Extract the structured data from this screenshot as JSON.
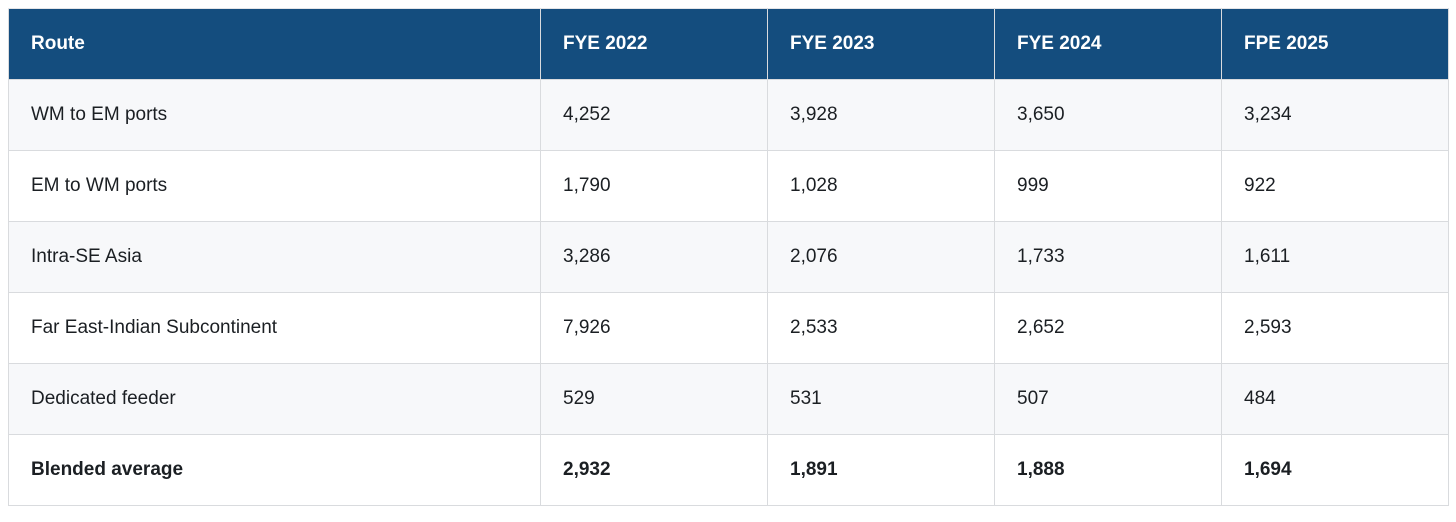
{
  "colors": {
    "header_bg": "#144d7e",
    "header_text": "#ffffff",
    "row_alt_bg": "#f7f8fa",
    "row_bg": "#ffffff",
    "border": "#d9dbde",
    "body_text": "#1b1f23"
  },
  "table": {
    "columns": [
      "Route",
      "FYE 2022",
      "FYE 2023",
      "FYE 2024",
      "FPE 2025"
    ],
    "rows": [
      {
        "route": "WM to EM ports",
        "values": [
          "4,252",
          "3,928",
          "3,650",
          "3,234"
        ],
        "bold": false
      },
      {
        "route": "EM to WM ports",
        "values": [
          "1,790",
          "1,028",
          "999",
          "922"
        ],
        "bold": false
      },
      {
        "route": "Intra-SE Asia",
        "values": [
          "3,286",
          "2,076",
          "1,733",
          "1,611"
        ],
        "bold": false
      },
      {
        "route": "Far East-Indian Subcontinent",
        "values": [
          "7,926",
          "2,533",
          "2,652",
          "2,593"
        ],
        "bold": false
      },
      {
        "route": "Dedicated feeder",
        "values": [
          "529",
          "531",
          "507",
          "484"
        ],
        "bold": false
      },
      {
        "route": "Blended average",
        "values": [
          "2,932",
          "1,891",
          "1,888",
          "1,694"
        ],
        "bold": true
      }
    ]
  },
  "chart_data": {
    "type": "table",
    "title": "",
    "categories": [
      "FYE 2022",
      "FYE 2023",
      "FYE 2024",
      "FPE 2025"
    ],
    "row_header_label": "Route",
    "series": [
      {
        "name": "WM to EM ports",
        "values": [
          4252,
          3928,
          3650,
          3234
        ]
      },
      {
        "name": "EM to WM ports",
        "values": [
          1790,
          1028,
          999,
          922
        ]
      },
      {
        "name": "Intra-SE Asia",
        "values": [
          3286,
          2076,
          1733,
          1611
        ]
      },
      {
        "name": "Far East-Indian Subcontinent",
        "values": [
          7926,
          2533,
          2652,
          2593
        ]
      },
      {
        "name": "Dedicated feeder",
        "values": [
          529,
          531,
          507,
          484
        ]
      },
      {
        "name": "Blended average",
        "values": [
          2932,
          1891,
          1888,
          1694
        ]
      }
    ]
  }
}
